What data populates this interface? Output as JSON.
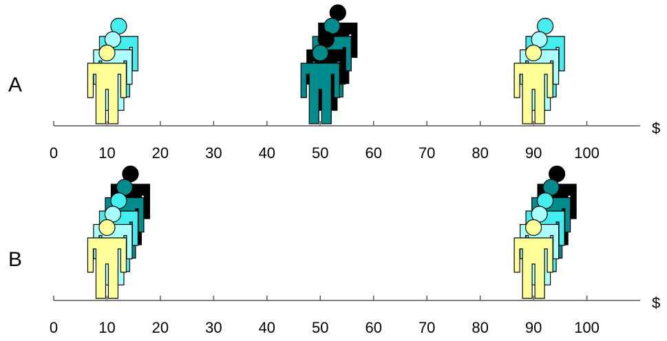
{
  "panels": [
    {
      "label": "A",
      "unit": "$",
      "xlim": [
        0,
        110
      ],
      "ticks": [
        0,
        10,
        20,
        30,
        40,
        50,
        60,
        70,
        80,
        90,
        100
      ],
      "groups": [
        {
          "value": 10,
          "colors": [
            "#ffff99",
            "#aaffff",
            "#44eeee"
          ]
        },
        {
          "value": 50,
          "colors": [
            "#008c8c",
            "#000000",
            "#008c8c",
            "#000000"
          ]
        },
        {
          "value": 90,
          "colors": [
            "#ffff99",
            "#aaffff",
            "#44eeee"
          ]
        }
      ]
    },
    {
      "label": "B",
      "unit": "$",
      "xlim": [
        0,
        110
      ],
      "ticks": [
        0,
        10,
        20,
        30,
        40,
        50,
        60,
        70,
        80,
        90,
        100
      ],
      "groups": [
        {
          "value": 10,
          "colors": [
            "#ffff99",
            "#aaffff",
            "#44eeee",
            "#008c8c",
            "#000000"
          ]
        },
        {
          "value": 90,
          "colors": [
            "#ffff99",
            "#aaffff",
            "#44eeee",
            "#008c8c",
            "#000000"
          ]
        }
      ]
    }
  ]
}
